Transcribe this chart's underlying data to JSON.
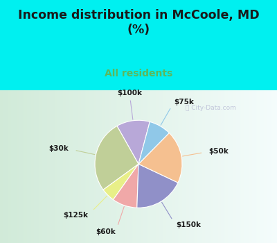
{
  "title": "Income distribution in McCoole, MD\n(%)",
  "subtitle": "All residents",
  "title_color": "#1a1a1a",
  "subtitle_color": "#5cb85c",
  "bg_cyan": "#00f0f0",
  "watermark": "City-Data.com",
  "labels": [
    "$100k",
    "$30k",
    "$125k",
    "$60k",
    "$150k",
    "$50k",
    "$75k"
  ],
  "values": [
    12,
    26,
    5,
    9,
    18,
    19,
    8
  ],
  "colors": [
    "#b8a8d8",
    "#c0cf98",
    "#e8ef88",
    "#f0a8a8",
    "#9090c8",
    "#f5c090",
    "#90c8e8"
  ],
  "line_colors": [
    "#b8a8d8",
    "#c0cf98",
    "#e8ef88",
    "#f0a8a8",
    "#9090c8",
    "#f5c090",
    "#90c8e8"
  ],
  "startangle": 75
}
